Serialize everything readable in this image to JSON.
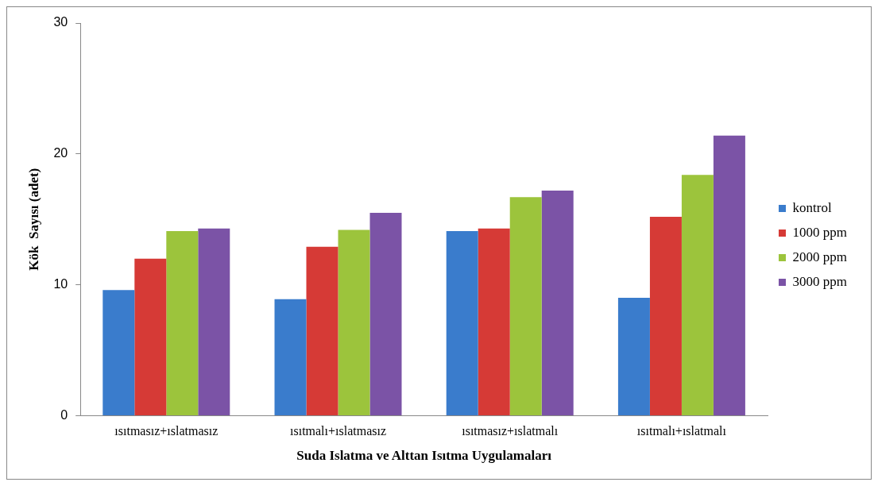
{
  "chart_data": {
    "type": "bar",
    "xlabel": "Suda Islatma ve Alttan Isıtma Uygulamaları",
    "ylabel": "Kök  Sayısı (adet)",
    "categories": [
      "ısıtmasız+ıslatmasız",
      "ısıtmalı+ıslatmasız",
      "ısıtmasız+ıslatmalı",
      "ısıtmalı+ıslatmalı"
    ],
    "series": [
      {
        "name": "kontrol",
        "color": "#3a7ccc",
        "values": [
          9.6,
          8.9,
          14.1,
          9.0
        ]
      },
      {
        "name": "1000 ppm",
        "color": "#d63a36",
        "values": [
          12.0,
          12.9,
          14.3,
          15.2
        ]
      },
      {
        "name": "2000 ppm",
        "color": "#9cc43c",
        "values": [
          14.1,
          14.2,
          16.7,
          18.4
        ]
      },
      {
        "name": "3000 ppm",
        "color": "#7b53a6",
        "values": [
          14.3,
          15.5,
          17.2,
          21.4
        ]
      }
    ],
    "ylim": [
      0,
      30
    ],
    "yticks": [
      0,
      10,
      20,
      30
    ],
    "grid": false,
    "legend": "right"
  }
}
